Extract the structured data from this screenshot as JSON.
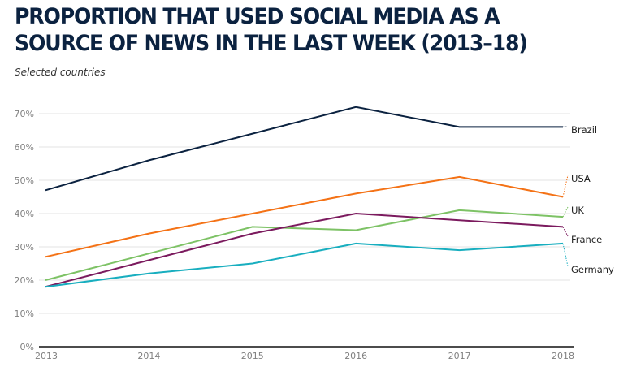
{
  "chart_data": {
    "type": "line",
    "title": "PROPORTION THAT USED SOCIAL MEDIA AS A SOURCE OF NEWS IN THE LAST WEEK (2013–18)",
    "subtitle": "Selected countries",
    "xlabel": "",
    "ylabel": "",
    "x": [
      "2013",
      "2014",
      "2015",
      "2016",
      "2017",
      "2018"
    ],
    "ylim": [
      0,
      70
    ],
    "yticks": [
      0,
      10,
      20,
      30,
      40,
      50,
      60,
      70
    ],
    "ytick_labels": [
      "0%",
      "10%",
      "20%",
      "30%",
      "40%",
      "50%",
      "60%",
      "70%"
    ],
    "grid": true,
    "legend": "direct-labels-right",
    "series": [
      {
        "name": "Brazil",
        "color": "#0b2240",
        "values": [
          47,
          56,
          64,
          72,
          66,
          66
        ]
      },
      {
        "name": "USA",
        "color": "#f47216",
        "values": [
          27,
          34,
          40,
          46,
          51,
          45
        ]
      },
      {
        "name": "UK",
        "color": "#7dc265",
        "values": [
          20,
          28,
          36,
          35,
          41,
          39
        ]
      },
      {
        "name": "France",
        "color": "#7b1a5e",
        "values": [
          18,
          26,
          34,
          40,
          38,
          36
        ]
      },
      {
        "name": "Germany",
        "color": "#18aebf",
        "values": [
          18,
          22,
          25,
          31,
          29,
          31
        ]
      }
    ]
  }
}
